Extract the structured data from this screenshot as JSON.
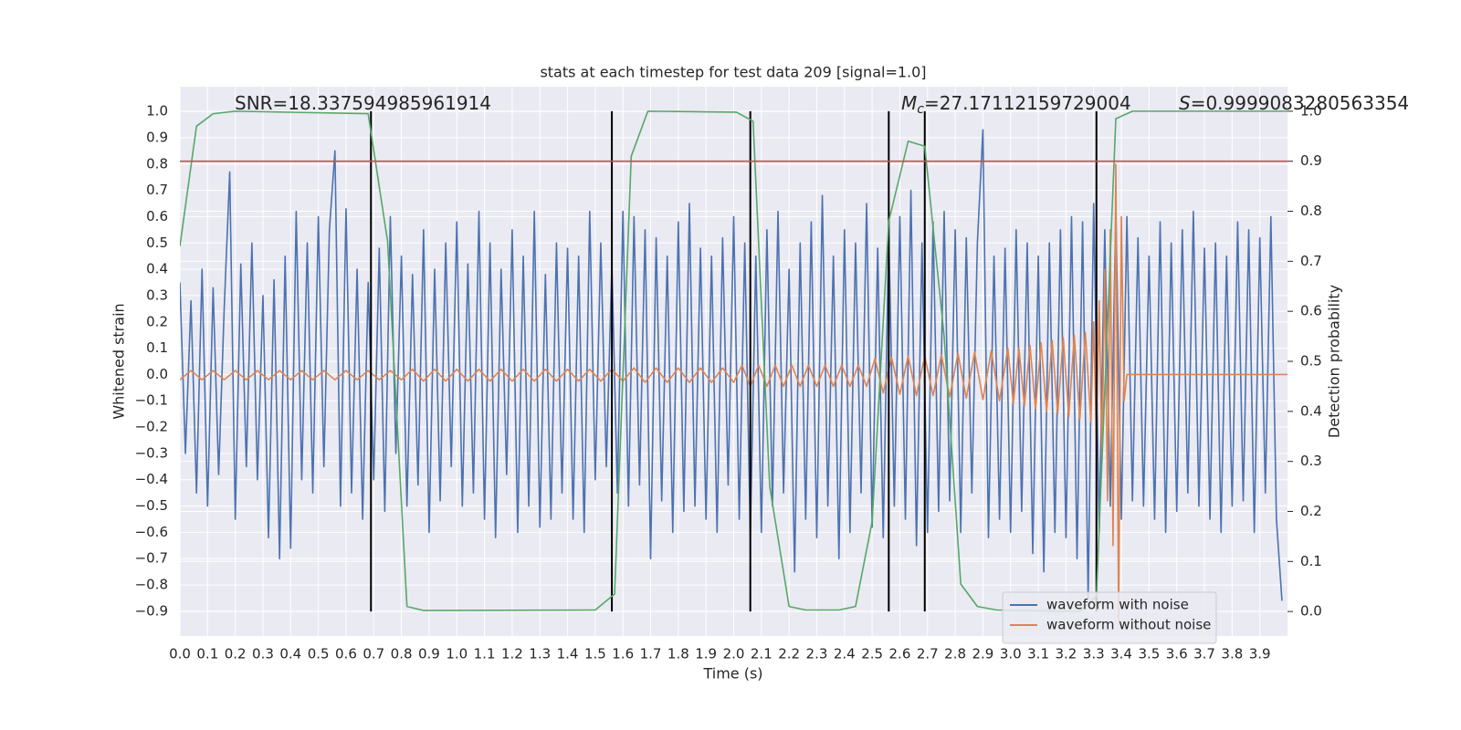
{
  "chart_data": {
    "type": "line",
    "title": "stats at each timestep for test data 209 [signal=1.0]",
    "x_label": "Time (s)",
    "y_label": "Whitened strain",
    "y2_label": "Detection probability",
    "xlim": [
      0,
      4.0
    ],
    "xticks": [
      {
        "value": 0,
        "label": "0.0"
      },
      0.1,
      0.2,
      0.3,
      0.4,
      0.5,
      0.6,
      0.7,
      0.8,
      0.9,
      {
        "value": 1,
        "label": "1.0"
      },
      1.1,
      1.2,
      1.3,
      1.4,
      1.5,
      1.6,
      1.7,
      1.8,
      1.9,
      {
        "value": 2,
        "label": "2.0"
      },
      2.1,
      2.2,
      2.3,
      2.4,
      2.5,
      2.6,
      2.7,
      2.8,
      2.9,
      {
        "value": 3,
        "label": "3.0"
      },
      3.1,
      3.2,
      3.3,
      3.4,
      3.5,
      3.6,
      3.7,
      3.8,
      3.9
    ],
    "ylim": [
      -0.994,
      1.094
    ],
    "yticks": [
      {
        "value": -0.9,
        "label": "−0.9"
      },
      {
        "value": -0.8,
        "label": "−0.8"
      },
      {
        "value": -0.7,
        "label": "−0.7"
      },
      {
        "value": -0.6,
        "label": "−0.6"
      },
      {
        "value": -0.5,
        "label": "−0.5"
      },
      {
        "value": -0.4,
        "label": "−0.4"
      },
      {
        "value": -0.3,
        "label": "−0.3"
      },
      {
        "value": -0.2,
        "label": "−0.2"
      },
      {
        "value": -0.1,
        "label": "−0.1"
      },
      {
        "value": 0,
        "label": "0.0"
      },
      0.1,
      0.2,
      0.3,
      0.4,
      0.5,
      0.6,
      0.7,
      0.8,
      0.9,
      {
        "value": 1,
        "label": "1.0"
      }
    ],
    "y2lim": [
      -0.049,
      1.049
    ],
    "y2ticks": [
      {
        "value": 0,
        "label": "0.0"
      },
      0.1,
      0.2,
      0.3,
      0.4,
      0.5,
      0.6,
      0.7,
      0.8,
      0.9,
      {
        "value": 1,
        "label": "1.0"
      }
    ],
    "grid": true,
    "legend": "lower right",
    "series": [
      {
        "name": "waveform with noise",
        "color": "#4c72b0",
        "x": [
          0,
          0.02,
          0.04,
          0.06,
          0.08,
          0.1,
          0.12,
          0.14,
          0.16,
          0.18,
          0.2,
          0.22,
          0.24,
          0.26,
          0.28,
          0.3,
          0.32,
          0.34,
          0.36,
          0.38,
          0.4,
          0.42,
          0.44,
          0.46,
          0.48,
          0.5,
          0.52,
          0.54,
          0.56,
          0.58,
          0.6,
          0.62,
          0.64,
          0.66,
          0.68,
          0.7,
          0.72,
          0.74,
          0.76,
          0.78,
          0.8,
          0.82,
          0.84,
          0.86,
          0.88,
          0.9,
          0.92,
          0.94,
          0.96,
          0.98,
          1,
          1.02,
          1.04,
          1.06,
          1.08,
          1.1,
          1.12,
          1.14,
          1.16,
          1.18,
          1.2,
          1.22,
          1.24,
          1.26,
          1.28,
          1.3,
          1.32,
          1.34,
          1.36,
          1.38,
          1.4,
          1.42,
          1.44,
          1.46,
          1.48,
          1.5,
          1.52,
          1.54,
          1.56,
          1.58,
          1.6,
          1.62,
          1.64,
          1.66,
          1.68,
          1.7,
          1.72,
          1.74,
          1.76,
          1.78,
          1.8,
          1.82,
          1.84,
          1.86,
          1.88,
          1.9,
          1.92,
          1.94,
          1.96,
          1.98,
          2,
          2.02,
          2.04,
          2.06,
          2.08,
          2.1,
          2.12,
          2.14,
          2.16,
          2.18,
          2.2,
          2.22,
          2.24,
          2.26,
          2.28,
          2.3,
          2.32,
          2.34,
          2.36,
          2.38,
          2.4,
          2.42,
          2.44,
          2.46,
          2.48,
          2.5,
          2.52,
          2.54,
          2.56,
          2.58,
          2.6,
          2.62,
          2.64,
          2.66,
          2.68,
          2.7,
          2.72,
          2.74,
          2.76,
          2.78,
          2.8,
          2.82,
          2.84,
          2.86,
          2.88,
          2.9,
          2.92,
          2.94,
          2.96,
          2.98,
          3,
          3.02,
          3.04,
          3.06,
          3.08,
          3.1,
          3.12,
          3.14,
          3.16,
          3.18,
          3.2,
          3.22,
          3.24,
          3.26,
          3.28,
          3.3,
          3.32,
          3.34,
          3.36,
          3.38,
          3.4,
          3.42,
          3.44,
          3.46,
          3.48,
          3.5,
          3.52,
          3.54,
          3.56,
          3.58,
          3.6,
          3.62,
          3.64,
          3.66,
          3.68,
          3.7,
          3.72,
          3.74,
          3.76,
          3.78,
          3.8,
          3.82,
          3.84,
          3.86,
          3.88,
          3.9,
          3.92,
          3.94,
          3.96,
          3.98
        ],
        "values": [
          0.35,
          -0.3,
          0.28,
          -0.45,
          0.4,
          -0.5,
          0.33,
          -0.38,
          0.25,
          0.77,
          -0.55,
          0.42,
          -0.35,
          0.5,
          -0.4,
          0.3,
          -0.62,
          0.36,
          -0.7,
          0.45,
          -0.66,
          0.62,
          -0.4,
          0.5,
          -0.45,
          0.6,
          -0.35,
          0.55,
          0.85,
          -0.5,
          0.63,
          -0.45,
          0.4,
          -0.55,
          0.35,
          -0.4,
          0.48,
          -0.52,
          0.6,
          -0.3,
          0.45,
          -0.5,
          0.38,
          -0.42,
          0.55,
          -0.6,
          0.4,
          -0.48,
          0.5,
          -0.35,
          0.58,
          -0.5,
          0.42,
          -0.45,
          0.62,
          -0.55,
          0.5,
          -0.62,
          0.4,
          -0.38,
          0.55,
          -0.6,
          0.45,
          -0.5,
          0.62,
          -0.58,
          0.38,
          -0.55,
          0.5,
          -0.45,
          0.48,
          -0.55,
          0.45,
          -0.6,
          0.62,
          -0.4,
          0.5,
          -0.35,
          0.42,
          -0.45,
          0.62,
          -0.5,
          0.6,
          -0.42,
          0.55,
          -0.7,
          0.52,
          -0.48,
          0.45,
          -0.6,
          0.58,
          -0.52,
          0.65,
          -0.5,
          0.48,
          -0.55,
          0.45,
          -0.6,
          0.52,
          -0.42,
          0.6,
          -0.55,
          0.5,
          -0.62,
          0.45,
          -0.6,
          0.55,
          -0.5,
          0.62,
          -0.45,
          0.4,
          -0.75,
          0.5,
          -0.55,
          0.58,
          -0.62,
          0.68,
          -0.5,
          0.45,
          -0.7,
          0.55,
          -0.6,
          0.5,
          -0.45,
          0.65,
          -0.58,
          0.48,
          -0.62,
          0.55,
          -0.5,
          0.6,
          -0.55,
          0.7,
          -0.65,
          0.5,
          -0.6,
          0.58,
          -0.52,
          0.62,
          -0.48,
          0.55,
          -0.6,
          0.52,
          -0.45,
          0.5,
          0.93,
          -0.62,
          0.45,
          -0.55,
          0.48,
          -0.6,
          0.55,
          -0.52,
          0.5,
          -0.68,
          0.45,
          -0.75,
          0.5,
          -0.6,
          0.55,
          -0.62,
          0.6,
          -0.7,
          0.58,
          -0.85,
          0.65,
          -0.6,
          0.55,
          -0.5,
          0.62,
          -0.55,
          0.6,
          -0.48,
          0.52,
          -0.5,
          0.45,
          -0.55,
          0.58,
          -0.6,
          0.5,
          -0.52,
          0.55,
          -0.45,
          0.62,
          -0.5,
          0.48,
          -0.55,
          0.5,
          -0.6,
          0.45,
          -0.5,
          0.58,
          -0.48,
          0.55,
          -0.6,
          0.52,
          -0.45,
          0.6,
          -0.55,
          -0.86
        ]
      },
      {
        "name": "waveform without noise",
        "color": "#dd8452",
        "x": [
          0,
          0.04,
          0.08,
          0.12,
          0.16,
          0.2,
          0.24,
          0.28,
          0.32,
          0.36,
          0.4,
          0.44,
          0.48,
          0.52,
          0.56,
          0.6,
          0.64,
          0.68,
          0.72,
          0.76,
          0.8,
          0.84,
          0.88,
          0.92,
          0.96,
          1,
          1.04,
          1.08,
          1.12,
          1.16,
          1.2,
          1.24,
          1.28,
          1.32,
          1.36,
          1.4,
          1.44,
          1.48,
          1.52,
          1.56,
          1.6,
          1.64,
          1.68,
          1.72,
          1.76,
          1.8,
          1.84,
          1.88,
          1.92,
          1.96,
          2,
          2.03,
          2.06,
          2.09,
          2.12,
          2.15,
          2.18,
          2.21,
          2.24,
          2.27,
          2.3,
          2.33,
          2.36,
          2.39,
          2.42,
          2.45,
          2.48,
          2.51,
          2.54,
          2.57,
          2.6,
          2.63,
          2.66,
          2.69,
          2.72,
          2.75,
          2.78,
          2.81,
          2.84,
          2.87,
          2.9,
          2.93,
          2.96,
          2.99,
          3.01,
          3.03,
          3.05,
          3.07,
          3.09,
          3.11,
          3.13,
          3.15,
          3.17,
          3.19,
          3.21,
          3.23,
          3.25,
          3.27,
          3.29,
          3.3,
          3.31,
          3.32,
          3.33,
          3.34,
          3.35,
          3.36,
          3.37,
          3.38,
          3.39,
          3.4,
          3.41,
          3.42,
          4.0
        ],
        "values": [
          -0.02,
          0.015,
          -0.02,
          0.015,
          -0.02,
          0.015,
          -0.02,
          0.015,
          -0.02,
          0.015,
          -0.02,
          0.015,
          -0.02,
          0.015,
          -0.02,
          0.015,
          -0.02,
          0.015,
          -0.02,
          0.015,
          -0.02,
          0.02,
          -0.025,
          0.02,
          -0.025,
          0.02,
          -0.025,
          0.02,
          -0.025,
          0.02,
          -0.025,
          0.02,
          -0.025,
          0.02,
          -0.025,
          0.02,
          -0.025,
          0.02,
          -0.025,
          0.02,
          -0.025,
          0.025,
          -0.03,
          0.025,
          -0.03,
          0.025,
          -0.03,
          0.025,
          -0.03,
          0.025,
          -0.03,
          0.035,
          -0.045,
          0.035,
          -0.045,
          0.035,
          -0.045,
          0.035,
          -0.045,
          0.035,
          -0.045,
          0.035,
          -0.045,
          0.035,
          -0.045,
          0.035,
          -0.045,
          0.06,
          -0.07,
          0.065,
          -0.075,
          0.07,
          -0.08,
          0.07,
          -0.08,
          0.075,
          -0.085,
          0.08,
          -0.09,
          0.085,
          -0.095,
          0.09,
          -0.1,
          0.1,
          -0.11,
          0.1,
          -0.12,
          0.11,
          -0.13,
          0.12,
          -0.14,
          0.13,
          -0.15,
          0.14,
          -0.16,
          0.15,
          -0.17,
          0.16,
          -0.18,
          0.2,
          -0.24,
          0.28,
          -0.33,
          0.4,
          -0.48,
          0.55,
          -0.65,
          0.8,
          -0.95,
          0.6,
          -0.1,
          0,
          0
        ]
      },
      {
        "color": "#55a868",
        "axis": "y2",
        "x": [
          0,
          0.06,
          0.12,
          0.2,
          0.68,
          0.75,
          0.82,
          0.88,
          1.5,
          1.57,
          1.63,
          1.69,
          2.01,
          2.07,
          2.13,
          2.2,
          2.26,
          2.38,
          2.44,
          2.5,
          2.56,
          2.63,
          2.69,
          2.76,
          2.82,
          2.88,
          2.95,
          3.25,
          3.31,
          3.38,
          3.44,
          4.0
        ],
        "values": [
          0.73,
          0.97,
          0.995,
          1.0,
          0.995,
          0.74,
          0.01,
          0.002,
          0.003,
          0.035,
          0.91,
          1.0,
          0.998,
          0.98,
          0.25,
          0.01,
          0.003,
          0.003,
          0.01,
          0.18,
          0.78,
          0.94,
          0.93,
          0.55,
          0.055,
          0.01,
          0.003,
          0.0,
          0.03,
          0.985,
          1.0,
          1.0
        ]
      }
    ],
    "hlines": [
      {
        "value": 0.9,
        "axis": "y2",
        "color": "#c44e52"
      }
    ],
    "vlines": {
      "x": [
        0.69,
        1.56,
        2.06,
        2.56,
        2.69,
        3.31
      ],
      "span": [
        0,
        1
      ],
      "axis": "y2",
      "color": "#000000"
    },
    "annotations": [
      {
        "text": "SNR=18.337594985961914"
      },
      {
        "italic": "M",
        "sub": "c",
        "text": "=27.17112159729004"
      },
      {
        "italic": "S",
        "text": "=0.9999083280563354"
      }
    ]
  }
}
